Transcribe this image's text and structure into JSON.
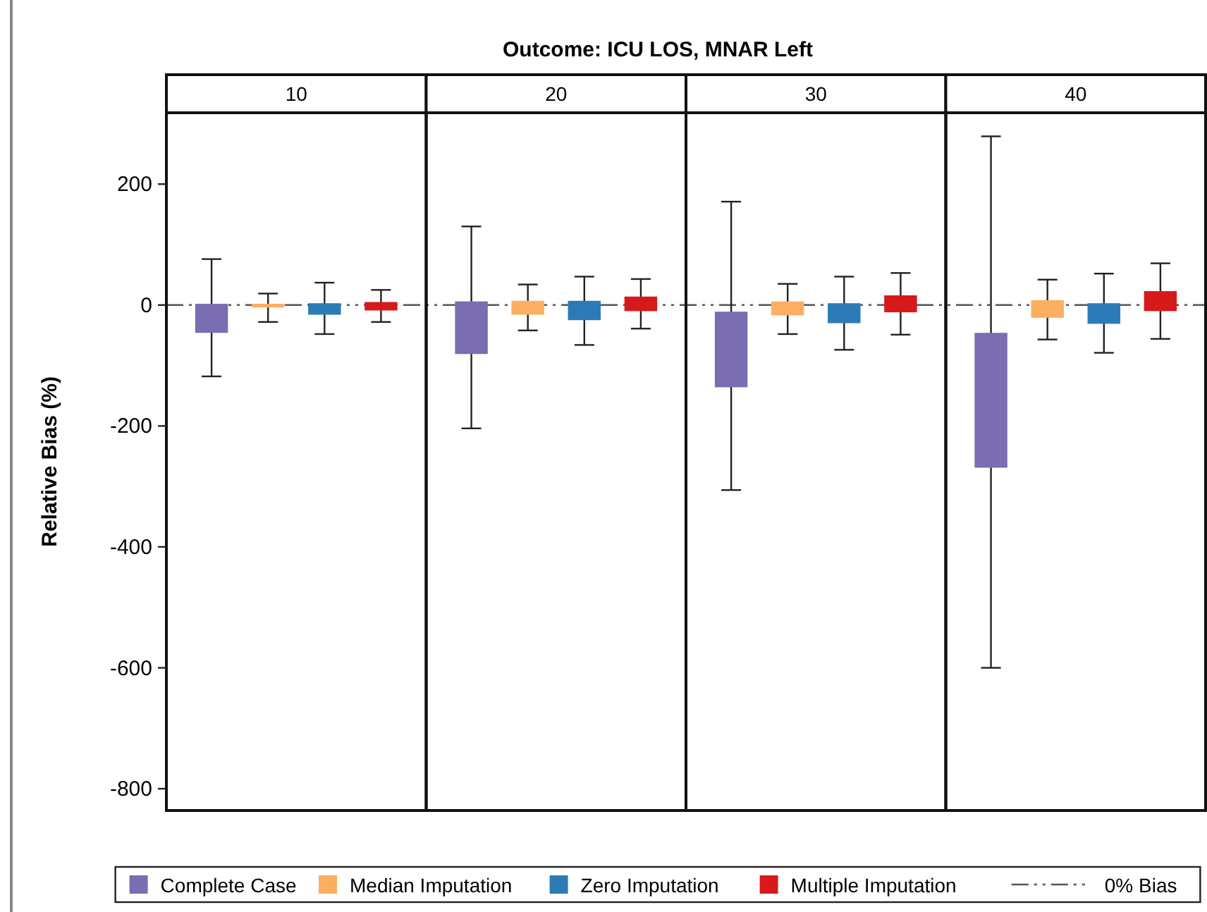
{
  "chart_data": {
    "type": "bar",
    "title": "Outcome: ICU LOS, MNAR Left",
    "ylabel": "Relative Bias (%)",
    "categories": [
      "10",
      "20",
      "30",
      "40"
    ],
    "series": [
      {
        "name": "Complete Case",
        "color": "#7a6db1",
        "base": [
          -46,
          -81,
          -136,
          -269
        ],
        "values": [
          48,
          87,
          125,
          223
        ],
        "errors": [
          [
            -118,
            76
          ],
          [
            -204,
            130
          ],
          [
            -306,
            171
          ],
          [
            -600,
            279
          ]
        ]
      },
      {
        "name": "Median Imputation",
        "color": "#fdae61",
        "base": [
          -4,
          -16,
          -17,
          -21
        ],
        "values": [
          6,
          23,
          23,
          29
        ],
        "errors": [
          [
            -28,
            19
          ],
          [
            -42,
            34
          ],
          [
            -48,
            35
          ],
          [
            -57,
            42
          ]
        ]
      },
      {
        "name": "Zero Imputation",
        "color": "#2c7bb6",
        "base": [
          -16,
          -25,
          -30,
          -31
        ],
        "values": [
          19,
          32,
          33,
          34
        ],
        "errors": [
          [
            -48,
            37
          ],
          [
            -66,
            47
          ],
          [
            -74,
            47
          ],
          [
            -79,
            52
          ]
        ]
      },
      {
        "name": "Multiple Imputation",
        "color": "#d7191c",
        "base": [
          -9,
          -10,
          -12,
          -10
        ],
        "values": [
          14,
          24,
          28,
          33
        ],
        "errors": [
          [
            -28,
            25
          ],
          [
            -39,
            43
          ],
          [
            -49,
            53
          ],
          [
            -56,
            69
          ]
        ]
      }
    ],
    "ylim": [
      -836,
      318
    ],
    "yticks": [
      -800,
      -600,
      -400,
      -200,
      0,
      200
    ],
    "ref_lines": [
      {
        "axis": "y",
        "value": 0,
        "label": "0% Bias",
        "line_style": "dashed",
        "color": "#555555"
      }
    ],
    "legend": "bottom"
  }
}
